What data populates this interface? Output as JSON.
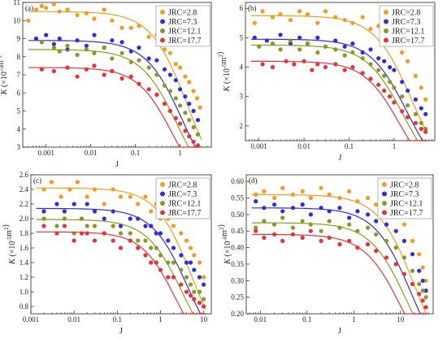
{
  "series_names": [
    "JRC=2.8",
    "JRC=7.3",
    "JRC=12.1",
    "JRC=17.7"
  ],
  "colors": [
    "#f39c1e",
    "#2e2ee0",
    "#8a9a1e",
    "#e8323a"
  ],
  "chart_data": [
    {
      "type": "scatter",
      "panel_label": "(a)",
      "xlabel": "J",
      "ylabel_base": "K",
      "ylabel_unit": "(×10",
      "ylabel_exp": "-5",
      "ylabel_tail": "m",
      "ylabel_sup2": "2",
      "ylabel_close": ")",
      "x_scale": "log",
      "xlim": [
        0.0003,
        5
      ],
      "ylim": [
        3,
        11
      ],
      "xticks": [
        0.001,
        0.01,
        0.1,
        1
      ],
      "xtick_labels": [
        "0.001",
        "0.01",
        "0.1",
        "1"
      ],
      "yticks": [
        3,
        4,
        5,
        6,
        7,
        8,
        9,
        10,
        11
      ],
      "ytick_labels": [
        "3",
        "4",
        "5",
        "6",
        "7",
        "8",
        "9",
        "10",
        "11"
      ],
      "legend_position": "top-right",
      "series": [
        {
          "name": "JRC=2.8",
          "plateau": 10.5,
          "jc": 0.85,
          "n": 1.05,
          "x": [
            0.0004,
            0.0006,
            0.0008,
            0.001,
            0.0015,
            0.002,
            0.003,
            0.005,
            0.008,
            0.012,
            0.02,
            0.03,
            0.05,
            0.08,
            0.12,
            0.2,
            0.3,
            0.45,
            0.6,
            0.8,
            1.0,
            1.3,
            1.6,
            2.0,
            2.4,
            2.8
          ],
          "y": [
            10.0,
            10.6,
            10.8,
            10.7,
            10.9,
            10.5,
            10.6,
            10.3,
            10.4,
            10.1,
            10.6,
            10.0,
            9.6,
            9.6,
            9.7,
            9.1,
            9.2,
            8.4,
            8.2,
            7.6,
            7.4,
            6.9,
            6.6,
            6.1,
            5.7,
            5.2
          ]
        },
        {
          "name": "JRC=7.3",
          "plateau": 8.9,
          "jc": 0.65,
          "n": 1.05,
          "x": [
            0.0006,
            0.001,
            0.0015,
            0.002,
            0.003,
            0.005,
            0.008,
            0.012,
            0.02,
            0.03,
            0.05,
            0.08,
            0.12,
            0.2,
            0.3,
            0.45,
            0.6,
            0.8,
            1.0,
            1.3,
            1.6,
            2.0,
            2.5
          ],
          "y": [
            9.0,
            9.2,
            8.7,
            9.0,
            8.4,
            8.9,
            8.6,
            9.2,
            8.5,
            8.9,
            8.8,
            8.3,
            8.5,
            7.9,
            7.8,
            7.3,
            7.0,
            6.7,
            6.2,
            5.8,
            5.4,
            5.0,
            4.5
          ]
        },
        {
          "name": "JRC=12.1",
          "plateau": 8.4,
          "jc": 0.5,
          "n": 1.05,
          "x": [
            0.0008,
            0.0015,
            0.002,
            0.003,
            0.005,
            0.008,
            0.012,
            0.02,
            0.03,
            0.05,
            0.08,
            0.12,
            0.2,
            0.3,
            0.45,
            0.6,
            0.8,
            1.0,
            1.3,
            1.6,
            2.0,
            2.5
          ],
          "y": [
            8.8,
            8.5,
            8.3,
            8.6,
            8.1,
            8.4,
            8.2,
            8.5,
            7.9,
            8.2,
            7.7,
            7.8,
            7.4,
            7.0,
            6.4,
            6.1,
            5.7,
            5.3,
            4.9,
            4.5,
            4.1,
            3.7
          ]
        },
        {
          "name": "JRC=17.7",
          "plateau": 7.4,
          "jc": 0.4,
          "n": 1.1,
          "x": [
            0.0008,
            0.0015,
            0.003,
            0.005,
            0.008,
            0.012,
            0.02,
            0.03,
            0.05,
            0.08,
            0.12,
            0.2,
            0.3,
            0.45,
            0.6,
            0.8,
            1.0,
            1.3,
            1.6,
            2.0,
            2.5
          ],
          "y": [
            7.3,
            7.2,
            7.4,
            6.9,
            7.3,
            7.5,
            7.0,
            7.2,
            6.8,
            6.9,
            6.5,
            6.2,
            5.9,
            5.4,
            5.0,
            4.6,
            4.3,
            3.9,
            3.6,
            3.3,
            3.1
          ]
        }
      ]
    },
    {
      "type": "scatter",
      "panel_label": "(b)",
      "xlabel": "J",
      "ylabel_base": "K",
      "ylabel_unit": "(×10",
      "ylabel_exp": "-5",
      "ylabel_tail": "m",
      "ylabel_sup2": "2",
      "ylabel_close": ")",
      "x_scale": "log",
      "xlim": [
        0.0005,
        8
      ],
      "ylim": [
        1.5,
        6.2
      ],
      "xticks": [
        0.001,
        0.01,
        0.1,
        1
      ],
      "xtick_labels": [
        "0.001",
        "0.01",
        "0.1",
        "1"
      ],
      "yticks": [
        2,
        3,
        4,
        5,
        6
      ],
      "ytick_labels": [
        "2",
        "3",
        "4",
        "5",
        "6"
      ],
      "legend_position": "top-right",
      "series": [
        {
          "name": "JRC=2.8",
          "plateau": 5.75,
          "jc": 1.4,
          "n": 1.05,
          "x": [
            0.0008,
            0.0012,
            0.002,
            0.003,
            0.005,
            0.008,
            0.012,
            0.02,
            0.03,
            0.05,
            0.08,
            0.12,
            0.2,
            0.3,
            0.45,
            0.6,
            0.8,
            1.0,
            1.5,
            2.0,
            3.0,
            4.0,
            5.0
          ],
          "y": [
            5.5,
            5.9,
            5.7,
            5.8,
            5.6,
            5.9,
            5.8,
            5.5,
            5.9,
            5.7,
            5.6,
            5.5,
            5.7,
            5.3,
            5.4,
            5.0,
            5.1,
            4.9,
            4.5,
            4.2,
            3.7,
            3.3,
            2.9
          ]
        },
        {
          "name": "JRC=7.3",
          "plateau": 4.95,
          "jc": 1.1,
          "n": 1.05,
          "x": [
            0.0008,
            0.0015,
            0.003,
            0.005,
            0.008,
            0.012,
            0.02,
            0.03,
            0.05,
            0.08,
            0.12,
            0.2,
            0.3,
            0.45,
            0.6,
            0.8,
            1.0,
            1.5,
            2.0,
            3.0,
            4.0,
            5.0
          ],
          "y": [
            5.0,
            4.9,
            5.1,
            4.8,
            5.0,
            4.8,
            5.0,
            4.7,
            4.9,
            4.7,
            4.8,
            4.5,
            4.6,
            4.3,
            4.2,
            4.0,
            3.9,
            3.5,
            3.2,
            2.9,
            2.6,
            2.4
          ]
        },
        {
          "name": "JRC=12.1",
          "plateau": 4.75,
          "jc": 0.9,
          "n": 1.05,
          "x": [
            0.001,
            0.002,
            0.003,
            0.005,
            0.008,
            0.012,
            0.02,
            0.03,
            0.05,
            0.08,
            0.12,
            0.2,
            0.3,
            0.45,
            0.6,
            0.8,
            1.0,
            1.5,
            2.0,
            3.0,
            4.0,
            5.0
          ],
          "y": [
            4.7,
            4.8,
            4.6,
            4.9,
            4.6,
            4.8,
            4.5,
            4.7,
            4.6,
            4.4,
            4.5,
            4.3,
            4.1,
            3.9,
            3.7,
            3.5,
            3.3,
            3.0,
            2.7,
            2.4,
            2.1,
            1.9
          ]
        },
        {
          "name": "JRC=17.7",
          "plateau": 4.2,
          "jc": 0.75,
          "n": 1.1,
          "x": [
            0.0012,
            0.002,
            0.004,
            0.006,
            0.01,
            0.015,
            0.02,
            0.03,
            0.05,
            0.08,
            0.12,
            0.2,
            0.3,
            0.45,
            0.6,
            0.8,
            1.0,
            1.5,
            2.0,
            3.0,
            4.0,
            5.0
          ],
          "y": [
            4.1,
            4.0,
            4.2,
            4.1,
            4.2,
            3.9,
            4.1,
            4.0,
            4.1,
            3.9,
            4.0,
            3.8,
            3.6,
            3.4,
            3.2,
            3.0,
            2.8,
            2.5,
            2.3,
            2.1,
            1.9,
            1.8
          ]
        }
      ]
    },
    {
      "type": "scatter",
      "panel_label": "(c)",
      "xlabel": "J",
      "ylabel_base": "K",
      "ylabel_unit": "(×10",
      "ylabel_exp": "-5",
      "ylabel_tail": "m",
      "ylabel_sup2": "2",
      "ylabel_close": ")",
      "x_scale": "log",
      "xlim": [
        0.001,
        15
      ],
      "ylim": [
        0.7,
        2.6
      ],
      "xticks": [
        0.001,
        0.01,
        0.1,
        1,
        10
      ],
      "xtick_labels": [
        "0.001",
        "0.01",
        "0.1",
        "1",
        "10"
      ],
      "yticks": [
        0.8,
        1.0,
        1.2,
        1.4,
        1.6,
        1.8,
        2.0,
        2.2,
        2.4,
        2.6
      ],
      "ytick_labels": [
        "0.8",
        "1.0",
        "1.2",
        "1.4",
        "1.6",
        "1.8",
        "2.0",
        "2.2",
        "2.4",
        "2.6"
      ],
      "legend_position": "top-right",
      "series": [
        {
          "name": "JRC=2.8",
          "plateau": 2.42,
          "jc": 3.0,
          "n": 1.05,
          "x": [
            0.002,
            0.003,
            0.005,
            0.008,
            0.012,
            0.02,
            0.03,
            0.05,
            0.08,
            0.12,
            0.2,
            0.3,
            0.45,
            0.6,
            0.8,
            1.0,
            1.5,
            2.0,
            3.0,
            4.0,
            5.0,
            6.0,
            8.0,
            10.0
          ],
          "y": [
            2.4,
            2.5,
            2.3,
            2.4,
            2.5,
            2.3,
            2.4,
            2.2,
            2.4,
            2.3,
            2.3,
            2.2,
            2.3,
            2.1,
            2.2,
            2.0,
            2.0,
            1.9,
            1.8,
            1.7,
            1.6,
            1.5,
            1.4,
            1.2
          ]
        },
        {
          "name": "JRC=7.3",
          "plateau": 2.14,
          "jc": 2.4,
          "n": 1.05,
          "x": [
            0.002,
            0.004,
            0.006,
            0.01,
            0.015,
            0.02,
            0.03,
            0.05,
            0.08,
            0.12,
            0.2,
            0.3,
            0.45,
            0.6,
            0.8,
            1.0,
            1.5,
            2.0,
            3.0,
            4.0,
            5.0,
            6.0,
            8.0,
            10.0
          ],
          "y": [
            2.1,
            2.2,
            2.1,
            2.2,
            2.0,
            2.2,
            2.1,
            2.0,
            2.1,
            1.9,
            2.0,
            2.0,
            1.9,
            1.9,
            1.8,
            1.8,
            1.7,
            1.6,
            1.5,
            1.4,
            1.4,
            1.3,
            1.2,
            1.1
          ]
        },
        {
          "name": "JRC=12.1",
          "plateau": 1.99,
          "jc": 1.8,
          "n": 1.05,
          "x": [
            0.002,
            0.004,
            0.006,
            0.01,
            0.015,
            0.02,
            0.03,
            0.05,
            0.08,
            0.12,
            0.2,
            0.3,
            0.45,
            0.6,
            0.8,
            1.0,
            1.5,
            2.0,
            3.0,
            4.0,
            5.0,
            6.0,
            8.0,
            10.0
          ],
          "y": [
            2.0,
            1.9,
            2.0,
            1.8,
            2.0,
            1.9,
            1.9,
            1.8,
            1.9,
            1.8,
            1.8,
            1.7,
            1.7,
            1.6,
            1.6,
            1.5,
            1.4,
            1.4,
            1.3,
            1.2,
            1.1,
            1.0,
            1.0,
            0.9
          ]
        },
        {
          "name": "JRC=17.7",
          "plateau": 1.82,
          "jc": 1.3,
          "n": 1.1,
          "x": [
            0.002,
            0.004,
            0.006,
            0.01,
            0.015,
            0.02,
            0.03,
            0.05,
            0.08,
            0.12,
            0.2,
            0.3,
            0.45,
            0.6,
            0.8,
            1.0,
            1.5,
            2.0,
            3.0,
            4.0,
            5.0,
            6.0,
            8.0,
            10.0
          ],
          "y": [
            1.9,
            1.8,
            1.9,
            1.7,
            1.8,
            1.8,
            1.7,
            1.8,
            1.7,
            1.6,
            1.7,
            1.6,
            1.5,
            1.4,
            1.4,
            1.3,
            1.2,
            1.2,
            1.1,
            1.0,
            0.95,
            0.9,
            0.85,
            0.8
          ]
        }
      ]
    },
    {
      "type": "scatter",
      "panel_label": "(d)",
      "xlabel": "J",
      "ylabel_base": "K",
      "ylabel_unit": "(×10",
      "ylabel_exp": "-6",
      "ylabel_tail": "m",
      "ylabel_sup2": "2",
      "ylabel_close": ")",
      "x_scale": "log",
      "xlim": [
        0.005,
        50
      ],
      "ylim": [
        0.2,
        0.62
      ],
      "xticks": [
        0.01,
        0.1,
        1,
        10
      ],
      "xtick_labels": [
        "0.01",
        "0.1",
        "1",
        "10"
      ],
      "yticks": [
        0.2,
        0.25,
        0.3,
        0.35,
        0.4,
        0.45,
        0.5,
        0.55,
        0.6
      ],
      "ytick_labels": [
        "0.20",
        "0.25",
        "0.30",
        "0.35",
        "0.40",
        "0.45",
        "0.50",
        "0.55",
        "0.60"
      ],
      "legend_position": "top-right",
      "series": [
        {
          "name": "JRC=2.8",
          "plateau": 0.56,
          "jc": 12.0,
          "n": 1.1,
          "x": [
            0.008,
            0.012,
            0.02,
            0.03,
            0.05,
            0.08,
            0.12,
            0.2,
            0.3,
            0.5,
            0.8,
            1.2,
            2.0,
            3.0,
            5.0,
            8.0,
            12.0,
            18.0,
            25.0,
            30.0,
            35.0
          ],
          "y": [
            0.56,
            0.57,
            0.55,
            0.58,
            0.56,
            0.57,
            0.55,
            0.58,
            0.56,
            0.55,
            0.57,
            0.54,
            0.55,
            0.53,
            0.52,
            0.5,
            0.47,
            0.42,
            0.38,
            0.34,
            0.3
          ]
        },
        {
          "name": "JRC=7.3",
          "plateau": 0.52,
          "jc": 10.0,
          "n": 1.1,
          "x": [
            0.008,
            0.012,
            0.02,
            0.03,
            0.05,
            0.08,
            0.12,
            0.2,
            0.3,
            0.5,
            0.8,
            1.2,
            2.0,
            3.0,
            5.0,
            8.0,
            12.0,
            18.0,
            25.0,
            30.0,
            35.0
          ],
          "y": [
            0.54,
            0.52,
            0.53,
            0.51,
            0.52,
            0.53,
            0.5,
            0.52,
            0.51,
            0.52,
            0.49,
            0.51,
            0.5,
            0.48,
            0.47,
            0.45,
            0.42,
            0.38,
            0.33,
            0.3,
            0.27
          ]
        },
        {
          "name": "JRC=12.1",
          "plateau": 0.475,
          "jc": 8.0,
          "n": 1.1,
          "x": [
            0.008,
            0.012,
            0.02,
            0.03,
            0.05,
            0.08,
            0.12,
            0.2,
            0.3,
            0.5,
            0.8,
            1.2,
            2.0,
            3.0,
            5.0,
            8.0,
            12.0,
            18.0,
            25.0,
            30.0,
            35.0
          ],
          "y": [
            0.46,
            0.48,
            0.47,
            0.49,
            0.46,
            0.48,
            0.47,
            0.45,
            0.48,
            0.46,
            0.47,
            0.45,
            0.46,
            0.44,
            0.42,
            0.4,
            0.37,
            0.33,
            0.29,
            0.27,
            0.25
          ]
        },
        {
          "name": "JRC=17.7",
          "plateau": 0.44,
          "jc": 6.0,
          "n": 1.1,
          "x": [
            0.008,
            0.012,
            0.02,
            0.03,
            0.05,
            0.08,
            0.12,
            0.2,
            0.3,
            0.5,
            0.8,
            1.2,
            2.0,
            3.0,
            5.0,
            8.0,
            12.0,
            18.0,
            25.0,
            30.0,
            35.0
          ],
          "y": [
            0.45,
            0.43,
            0.44,
            0.42,
            0.44,
            0.43,
            0.45,
            0.42,
            0.43,
            0.41,
            0.42,
            0.4,
            0.41,
            0.39,
            0.37,
            0.35,
            0.32,
            0.29,
            0.26,
            0.24,
            0.22
          ]
        }
      ]
    }
  ]
}
